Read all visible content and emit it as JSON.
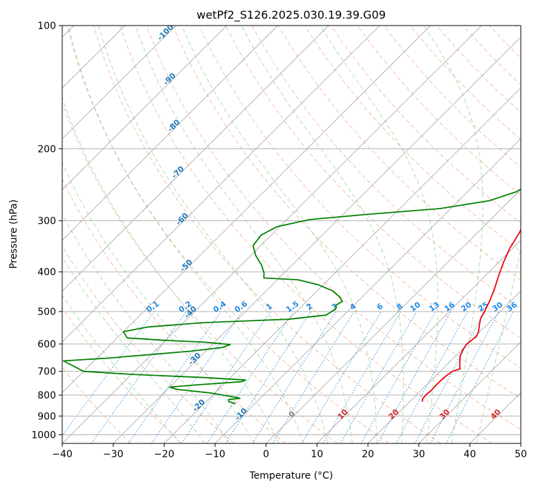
{
  "chart_data": {
    "type": "line",
    "title": "wetPf2_S126.2025.030.19.39.G09",
    "xlabel": "Temperature (°C)",
    "ylabel": "Pressure (hPa)",
    "xlim": [
      -40,
      50
    ],
    "ylim": [
      1050,
      100
    ],
    "y_scale": "log",
    "x_ticks": [
      -40,
      -30,
      -20,
      -10,
      0,
      10,
      20,
      30,
      40,
      50
    ],
    "y_ticks": [
      100,
      200,
      300,
      400,
      500,
      600,
      700,
      800,
      900,
      1000
    ],
    "grid": true,
    "skew": "Skew-T log-P diagram",
    "background_lines": {
      "isotherm_labels": [
        "-100",
        "-90",
        "-80",
        "-70",
        "-60",
        "-50",
        "-40",
        "-30",
        "-20",
        "-10",
        "0",
        "10",
        "20",
        "30",
        "40"
      ],
      "mixing_ratio_labels": [
        "0.1",
        "0.2",
        "0.4",
        "0.6",
        "1",
        "1.5",
        "2",
        "3",
        "4",
        "6",
        "8",
        "10",
        "13",
        "16",
        "20",
        "25",
        "30",
        "36"
      ],
      "isotherm_color": "#9e9e9e",
      "dry_adiabat_color": "#f4a582",
      "moist_adiabat_color": "#7fbf7b",
      "mixing_ratio_color": "#1e88e5"
    },
    "series": [
      {
        "color": "#e8000b",
        "points": [
          [
            830,
            22.5
          ],
          [
            820,
            22.0
          ],
          [
            800,
            21.8
          ],
          [
            780,
            22.0
          ],
          [
            760,
            21.9
          ],
          [
            740,
            21.9
          ],
          [
            720,
            22.0
          ],
          [
            700,
            22.4
          ],
          [
            690,
            23.4
          ],
          [
            680,
            22.8
          ],
          [
            660,
            21.8
          ],
          [
            640,
            20.8
          ],
          [
            620,
            20.2
          ],
          [
            600,
            19.8
          ],
          [
            590,
            20.0
          ],
          [
            575,
            20.2
          ],
          [
            560,
            19.7
          ],
          [
            540,
            18.6
          ],
          [
            520,
            17.5
          ],
          [
            500,
            16.9
          ],
          [
            470,
            15.8
          ],
          [
            440,
            14.4
          ],
          [
            410,
            12.7
          ],
          [
            380,
            11.0
          ],
          [
            350,
            9.4
          ],
          [
            320,
            8.2
          ],
          [
            290,
            6.3
          ],
          [
            260,
            3.5
          ],
          [
            235,
            1.5
          ],
          [
            210,
            0.0
          ],
          [
            190,
            -1.2
          ],
          [
            178,
            -1.5
          ],
          [
            168,
            -0.2
          ],
          [
            158,
            1.8
          ],
          [
            150,
            4.0
          ],
          [
            140,
            5.4
          ],
          [
            130,
            6.5
          ],
          [
            120,
            7.5
          ],
          [
            110,
            8.2
          ],
          [
            105,
            9.0
          ],
          [
            100,
            10.0
          ]
        ]
      },
      {
        "color": "#008000",
        "points": [
          [
            840,
            -13.8
          ],
          [
            830,
            -15.5
          ],
          [
            820,
            -16.0
          ],
          [
            815,
            -14.0
          ],
          [
            810,
            -15.0
          ],
          [
            790,
            -21.0
          ],
          [
            775,
            -28.0
          ],
          [
            765,
            -30.0
          ],
          [
            755,
            -25.0
          ],
          [
            742,
            -17.0
          ],
          [
            735,
            -16.5
          ],
          [
            725,
            -25.0
          ],
          [
            712,
            -40.0
          ],
          [
            700,
            -50.0
          ],
          [
            660,
            -56.0
          ],
          [
            650,
            -48.0
          ],
          [
            625,
            -33.0
          ],
          [
            612,
            -27.5
          ],
          [
            602,
            -26.5
          ],
          [
            594,
            -32.0
          ],
          [
            588,
            -40.0
          ],
          [
            580,
            -48.0
          ],
          [
            560,
            -50.0
          ],
          [
            545,
            -46.0
          ],
          [
            532,
            -36.0
          ],
          [
            522,
            -20.0
          ],
          [
            510,
            -13.5
          ],
          [
            493,
            -12.8
          ],
          [
            482,
            -13.5
          ],
          [
            472,
            -13.0
          ],
          [
            460,
            -14.5
          ],
          [
            445,
            -17.0
          ],
          [
            430,
            -21.0
          ],
          [
            418,
            -26.0
          ],
          [
            414,
            -33.0
          ],
          [
            402,
            -34.0
          ],
          [
            385,
            -36.0
          ],
          [
            365,
            -39.0
          ],
          [
            345,
            -41.5
          ],
          [
            325,
            -42.0
          ],
          [
            310,
            -40.5
          ],
          [
            298,
            -35.5
          ],
          [
            290,
            -26.0
          ],
          [
            280,
            -12.0
          ],
          [
            268,
            -4.0
          ],
          [
            255,
            -0.5
          ],
          [
            240,
            1.0
          ],
          [
            225,
            1.5
          ],
          [
            212,
            1.5
          ],
          [
            200,
            1.5
          ],
          [
            190,
            2.0
          ],
          [
            180,
            3.0
          ],
          [
            172,
            4.5
          ],
          [
            162,
            5.0
          ],
          [
            155,
            5.0
          ],
          [
            146,
            4.5
          ],
          [
            140,
            5.0
          ],
          [
            132,
            7.5
          ],
          [
            124,
            10.5
          ],
          [
            118,
            12.0
          ],
          [
            110,
            14.0
          ],
          [
            104,
            15.5
          ],
          [
            100,
            16.5
          ]
        ]
      }
    ]
  }
}
